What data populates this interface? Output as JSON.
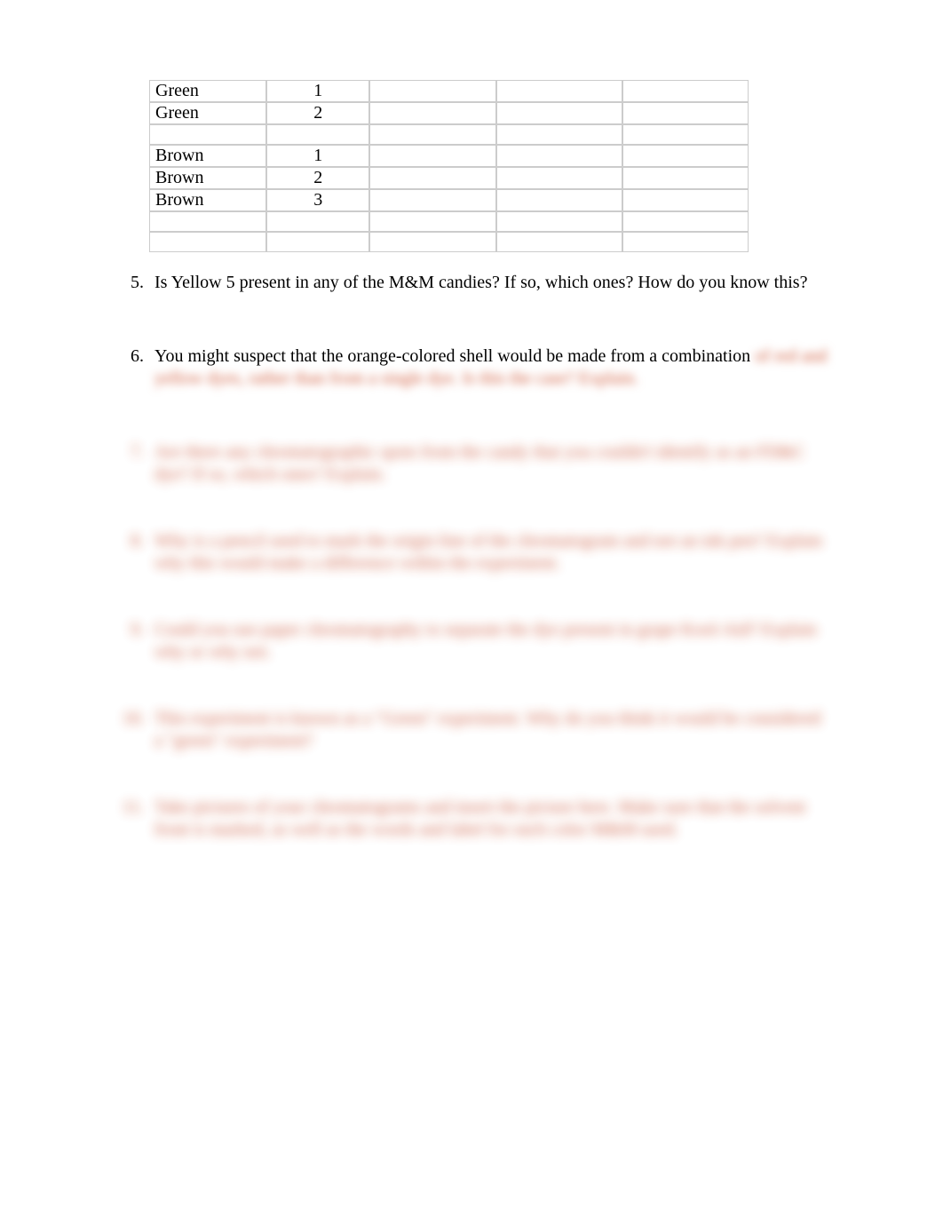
{
  "table": {
    "rows": [
      {
        "label": "Green",
        "num": "1"
      },
      {
        "label": "Green",
        "num": "2"
      },
      {
        "label": "",
        "num": ""
      },
      {
        "label": "Brown",
        "num": "1"
      },
      {
        "label": "Brown",
        "num": "2"
      },
      {
        "label": "Brown",
        "num": "3"
      },
      {
        "label": "",
        "num": ""
      },
      {
        "label": "",
        "num": ""
      }
    ],
    "empty_cols": 3
  },
  "questions": [
    {
      "n": "5.",
      "text": "Is Yellow 5 present in any of the M&M candies? If so, which ones? How do you know this?"
    },
    {
      "n": "6.",
      "text": "You might suspect that the orange-colored shell would be made from a combination of red and yellow dyes, rather than from a single dye. Is this the case? Explain."
    },
    {
      "n": "7.",
      "text": "Are there any chromatographic spots from the candy that you couldn't identify as an FD&C dye? If so, which ones? Explain."
    },
    {
      "n": "8.",
      "text": "Why is a pencil used to mark the origin line of the chromatogram and not an ink pen? Explain why this would make a difference within the experiment."
    },
    {
      "n": "9.",
      "text": "Could you use paper chromatography to separate the dye present in grape Kool-Aid? Explain why or why not."
    },
    {
      "n": "10.",
      "text": "This experiment is known as a \"Green\" experiment. Why do you think it would be considered a \"green\" experiment?"
    },
    {
      "n": "11.",
      "text": "Take pictures of your chromatograms and insert the picture here. Make sure that the solvent front is marked, as well as the words and label for each color M&M used."
    }
  ]
}
